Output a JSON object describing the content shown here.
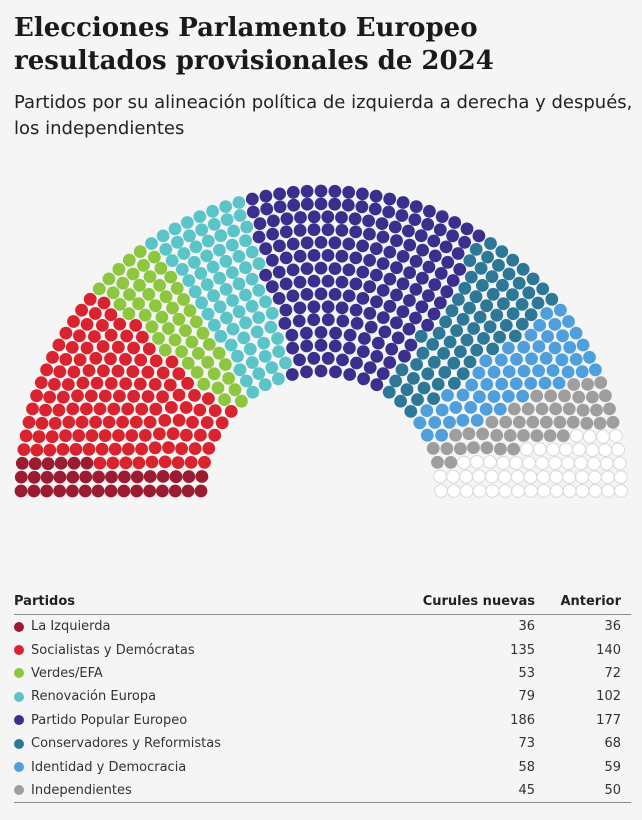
{
  "title": "Elecciones Parlamento Europeo resultados provisionales de 2024",
  "subtitle": "Partidos por su alineación política de izquierda a derecha y después, los independientes",
  "table": {
    "headers": {
      "party": "Partidos",
      "new": "Curules nuevas",
      "old": "Anterior"
    }
  },
  "chart_data": {
    "type": "hemicycle",
    "title": "Elecciones Parlamento Europeo resultados provisionales de 2024",
    "subtitle": "Partidos por su alineación política de izquierda a derecha y después, los independientes",
    "total_seats": 720,
    "unassigned_seats": 55,
    "unassigned_color": "#ffffff",
    "series": [
      {
        "name": "La Izquierda",
        "new": 36,
        "old": 36,
        "color": "#9b1c31"
      },
      {
        "name": "Socialistas y Demócratas",
        "new": 135,
        "old": 140,
        "color": "#d9242f"
      },
      {
        "name": "Verdes/EFA",
        "new": 53,
        "old": 72,
        "color": "#8dc63f"
      },
      {
        "name": "Renovación Europa",
        "new": 79,
        "old": 102,
        "color": "#5bc4c8"
      },
      {
        "name": "Partido Popular Europeo",
        "new": 186,
        "old": 177,
        "color": "#3b2f8d"
      },
      {
        "name": "Conservadores y Reformistas",
        "new": 73,
        "old": 68,
        "color": "#2e7897"
      },
      {
        "name": "Identidad y Democracia",
        "new": 58,
        "old": 59,
        "color": "#4f9fdd"
      },
      {
        "name": "Independientes",
        "new": 45,
        "old": 50,
        "color": "#9e9e9e"
      }
    ]
  }
}
